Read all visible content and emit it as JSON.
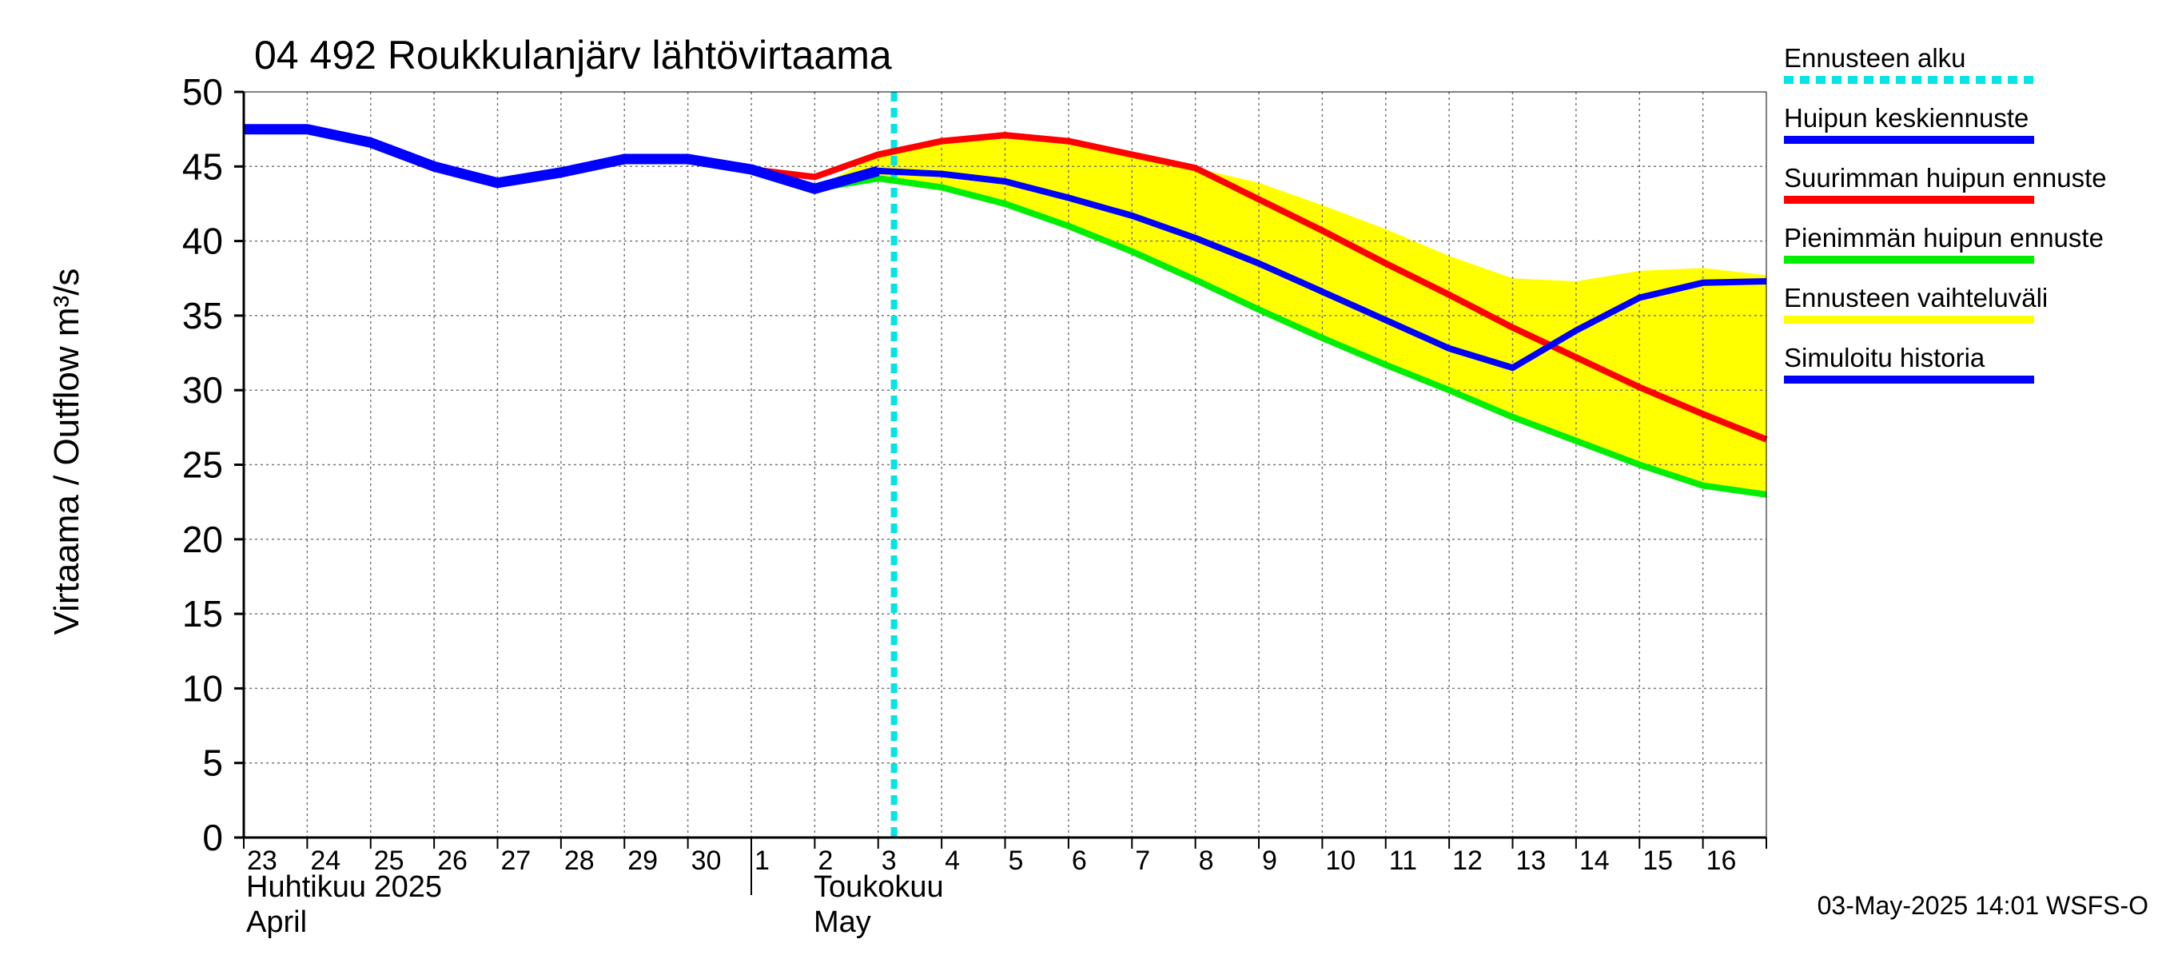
{
  "chart_data": {
    "type": "line",
    "title": "04 492 Roukkulanjärv lähtövirtaama",
    "ylabel": "Virtaama / Outflow    m³/s",
    "ylim": [
      0,
      50
    ],
    "yticks": [
      "0",
      "5",
      "10",
      "15",
      "20",
      "25",
      "30",
      "35",
      "40",
      "45",
      "50"
    ],
    "grid": true,
    "legend_position": "right",
    "x_start": "2025-04-23",
    "x_end": "2025-05-17",
    "day_labels": [
      "23",
      "24",
      "25",
      "26",
      "27",
      "28",
      "29",
      "30",
      "1",
      "2",
      "3",
      "4",
      "5",
      "6",
      "7",
      "8",
      "9",
      "10",
      "11",
      "12",
      "13",
      "14",
      "15",
      "16"
    ],
    "month_labels": {
      "april_fi": "Huhtikuu  2025",
      "april_en": "April",
      "may_fi": "Toukokuu",
      "may_en": "May"
    },
    "forecast_start": "2025-05-03T06:00",
    "series": [
      {
        "name": "Ennusteen vaihteluväli",
        "kind": "band",
        "color": "#ffff00",
        "points": [
          [
            "2025-05-02",
            43.5,
            43.5
          ],
          [
            "2025-05-03",
            44.2,
            45.8
          ],
          [
            "2025-05-04",
            43.6,
            46.6
          ],
          [
            "2025-05-05",
            42.5,
            47.0
          ],
          [
            "2025-05-06",
            41.0,
            46.7
          ],
          [
            "2025-05-07",
            39.3,
            45.8
          ],
          [
            "2025-05-08",
            37.4,
            44.9
          ],
          [
            "2025-05-09",
            35.4,
            43.9
          ],
          [
            "2025-05-10",
            33.5,
            42.4
          ],
          [
            "2025-05-11",
            31.7,
            40.8
          ],
          [
            "2025-05-12",
            30.0,
            39.0
          ],
          [
            "2025-05-13",
            28.2,
            37.5
          ],
          [
            "2025-05-14",
            26.6,
            37.3
          ],
          [
            "2025-05-15",
            25.0,
            38.0
          ],
          [
            "2025-05-16",
            23.6,
            38.2
          ],
          [
            "2025-05-17",
            23.0,
            37.7
          ]
        ]
      },
      {
        "name": "Suurimman huipun ennuste",
        "kind": "line",
        "color": "#ff0000",
        "points": [
          [
            "2025-05-01",
            44.8
          ],
          [
            "2025-05-02",
            44.3
          ],
          [
            "2025-05-03",
            45.8
          ],
          [
            "2025-05-04",
            46.7
          ],
          [
            "2025-05-05",
            47.1
          ],
          [
            "2025-05-06",
            46.7
          ],
          [
            "2025-05-07",
            45.8
          ],
          [
            "2025-05-08",
            44.9
          ],
          [
            "2025-05-09",
            42.8
          ],
          [
            "2025-05-10",
            40.7
          ],
          [
            "2025-05-11",
            38.5
          ],
          [
            "2025-05-12",
            36.4
          ],
          [
            "2025-05-13",
            34.2
          ],
          [
            "2025-05-14",
            32.2
          ],
          [
            "2025-05-15",
            30.2
          ],
          [
            "2025-05-16",
            28.4
          ],
          [
            "2025-05-17",
            26.7
          ]
        ]
      },
      {
        "name": "Pienimmän huipun ennuste",
        "kind": "line",
        "color": "#00ee00",
        "points": [
          [
            "2025-05-02",
            43.5
          ],
          [
            "2025-05-03",
            44.2
          ],
          [
            "2025-05-04",
            43.6
          ],
          [
            "2025-05-05",
            42.5
          ],
          [
            "2025-05-06",
            41.0
          ],
          [
            "2025-05-07",
            39.3
          ],
          [
            "2025-05-08",
            37.4
          ],
          [
            "2025-05-09",
            35.4
          ],
          [
            "2025-05-10",
            33.5
          ],
          [
            "2025-05-11",
            31.7
          ],
          [
            "2025-05-12",
            30.0
          ],
          [
            "2025-05-13",
            28.2
          ],
          [
            "2025-05-14",
            26.6
          ],
          [
            "2025-05-15",
            25.0
          ],
          [
            "2025-05-16",
            23.6
          ],
          [
            "2025-05-17",
            23.0
          ]
        ]
      },
      {
        "name": "Huipun keskiennuste",
        "kind": "line",
        "color": "#0000ff",
        "points": [
          [
            "2025-05-02",
            43.5
          ],
          [
            "2025-05-03",
            44.7
          ],
          [
            "2025-05-04",
            44.5
          ],
          [
            "2025-05-05",
            44.0
          ],
          [
            "2025-05-06",
            42.9
          ],
          [
            "2025-05-07",
            41.7
          ],
          [
            "2025-05-08",
            40.2
          ],
          [
            "2025-05-09",
            38.5
          ],
          [
            "2025-05-10",
            36.6
          ],
          [
            "2025-05-11",
            34.7
          ],
          [
            "2025-05-12",
            32.8
          ],
          [
            "2025-05-13",
            31.5
          ],
          [
            "2025-05-14",
            34.0
          ],
          [
            "2025-05-15",
            36.2
          ],
          [
            "2025-05-16",
            37.2
          ],
          [
            "2025-05-17",
            37.3
          ]
        ]
      },
      {
        "name": "Simuloitu historia",
        "kind": "line",
        "color": "#0000ff",
        "points": [
          [
            "2025-04-23",
            47.5
          ],
          [
            "2025-04-24",
            47.5
          ],
          [
            "2025-04-25",
            46.6
          ],
          [
            "2025-04-26",
            45.0
          ],
          [
            "2025-04-27",
            43.9
          ],
          [
            "2025-04-28",
            44.6
          ],
          [
            "2025-04-29",
            45.5
          ],
          [
            "2025-04-30",
            45.5
          ],
          [
            "2025-05-01",
            44.8
          ],
          [
            "2025-05-02",
            43.5
          ],
          [
            "2025-05-03",
            44.7
          ]
        ]
      }
    ],
    "legend": [
      {
        "label": "Ennusteen alku",
        "color": "#00e5e5",
        "style": "dashed"
      },
      {
        "label": "Huipun keskiennuste",
        "color": "#0000ff",
        "style": "solid"
      },
      {
        "label": "Suurimman huipun ennuste",
        "color": "#ff0000",
        "style": "solid"
      },
      {
        "label": "Pienimmän huipun ennuste",
        "color": "#00ee00",
        "style": "solid"
      },
      {
        "label": "Ennusteen vaihteluväli",
        "color": "#ffff00",
        "style": "solid"
      },
      {
        "label": "Simuloitu historia",
        "color": "#0000ff",
        "style": "solid"
      }
    ],
    "footer": "03-May-2025 14:01 WSFS-O"
  }
}
